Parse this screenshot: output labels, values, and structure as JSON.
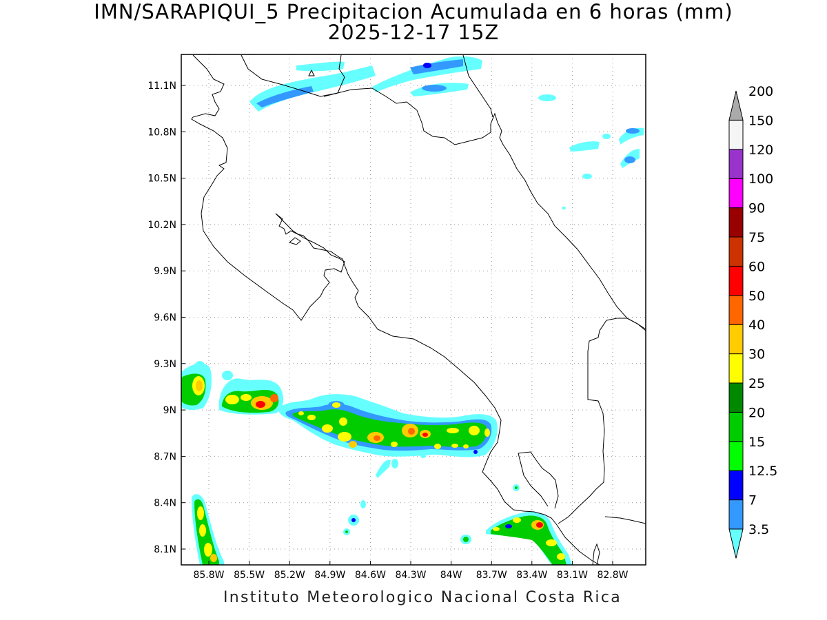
{
  "title": {
    "line1": "IMN/SARAPIQUI_5 Precipitacion Acumulada en 6 horas (mm)",
    "line2": "2025-12-17 15Z"
  },
  "footer": "Instituto Meteorologico Nacional Costa Rica",
  "map": {
    "region": "Costa Rica",
    "variable": "Precipitacion Acumulada en 6 horas",
    "units": "mm",
    "lon_range": [
      -86.0,
      -82.5
    ],
    "lat_range": [
      8.0,
      11.2
    ],
    "lat_ticks": [
      "11.1N",
      "10.8N",
      "10.5N",
      "10.2N",
      "9.9N",
      "9.6N",
      "9.3N",
      "9N",
      "8.7N",
      "8.4N",
      "8.1N"
    ],
    "lon_ticks": [
      "85.8W",
      "85.5W",
      "85.2W",
      "84.9W",
      "84.6W",
      "84.3W",
      "84W",
      "83.7W",
      "83.4W",
      "83.1W",
      "82.8W"
    ],
    "grid": "dotted",
    "colorbar": {
      "levels": [
        "3.5",
        "7",
        "12.5",
        "15",
        "20",
        "25",
        "30",
        "40",
        "50",
        "60",
        "75",
        "90",
        "100",
        "120",
        "150",
        "200"
      ],
      "colors": [
        "#66ffff",
        "#3399ff",
        "#0000ff",
        "#00ff00",
        "#00cc00",
        "#008800",
        "#ffff00",
        "#ffcc00",
        "#ff6600",
        "#ff0000",
        "#cc3300",
        "#990000",
        "#ff00ff",
        "#9933cc",
        "#f5f5f5",
        "#aaaaaa"
      ]
    }
  }
}
